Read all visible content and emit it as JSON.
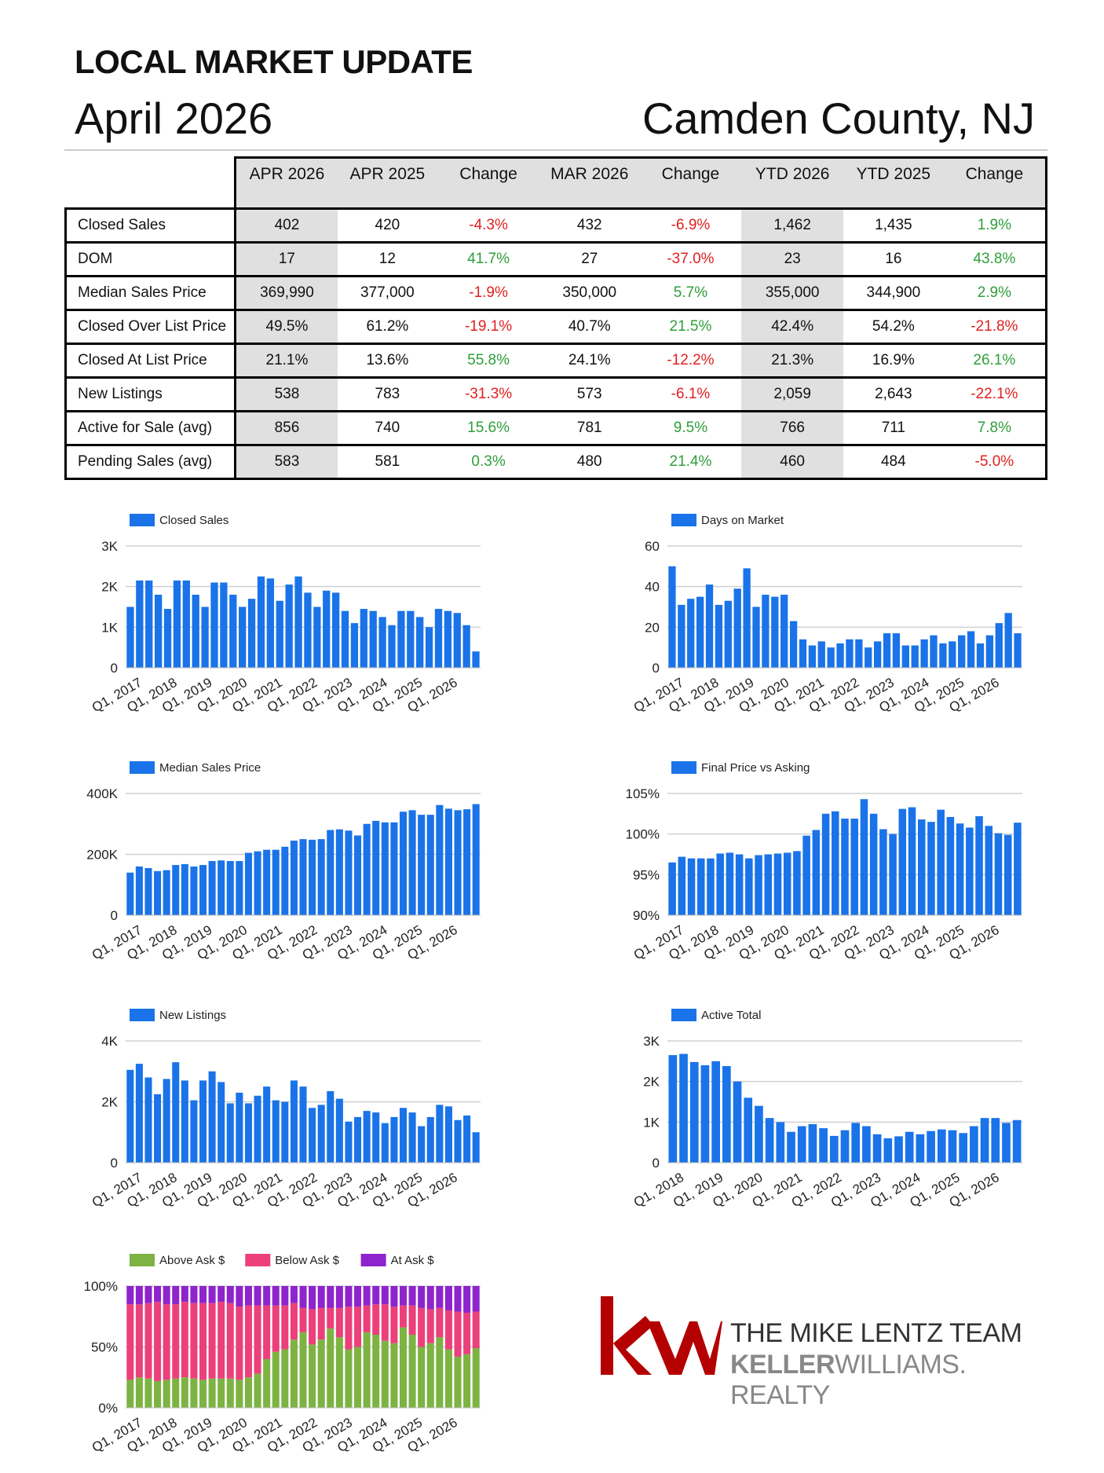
{
  "header": {
    "title": "LOCAL MARKET UPDATE",
    "date": "April 2026",
    "location": "Camden County, NJ"
  },
  "table": {
    "columns": [
      "APR 2026",
      "APR 2025",
      "Change",
      "MAR 2026",
      "Change",
      "YTD 2026",
      "YTD 2025",
      "Change"
    ],
    "rows": [
      {
        "label": "Closed Sales",
        "values": [
          "402",
          "420",
          "-4.3%",
          "432",
          "-6.9%",
          "1,462",
          "1,435",
          "1.9%"
        ]
      },
      {
        "label": "DOM",
        "values": [
          "17",
          "12",
          "41.7%",
          "27",
          "-37.0%",
          "23",
          "16",
          "43.8%"
        ]
      },
      {
        "label": "Median Sales Price",
        "values": [
          "369,990",
          "377,000",
          "-1.9%",
          "350,000",
          "5.7%",
          "355,000",
          "344,900",
          "2.9%"
        ]
      },
      {
        "label": "Closed Over List Price",
        "values": [
          "49.5%",
          "61.2%",
          "-19.1%",
          "40.7%",
          "21.5%",
          "42.4%",
          "54.2%",
          "-21.8%"
        ]
      },
      {
        "label": "Closed At List Price",
        "values": [
          "21.1%",
          "13.6%",
          "55.8%",
          "24.1%",
          "-12.2%",
          "21.3%",
          "16.9%",
          "26.1%"
        ]
      },
      {
        "label": "New Listings",
        "values": [
          "538",
          "783",
          "-31.3%",
          "573",
          "-6.1%",
          "2,059",
          "2,643",
          "-22.1%"
        ]
      },
      {
        "label": "Active for Sale (avg)",
        "values": [
          "856",
          "740",
          "15.6%",
          "781",
          "9.5%",
          "766",
          "711",
          "7.8%"
        ]
      },
      {
        "label": "Pending Sales (avg)",
        "values": [
          "583",
          "581",
          "0.3%",
          "480",
          "21.4%",
          "460",
          "484",
          "-5.0%"
        ]
      }
    ]
  },
  "colors": {
    "bar": "#1a73e8",
    "above": "#7cb342",
    "below": "#ec407a",
    "at": "#8e24cc",
    "negative": "#e02020",
    "positive": "#2e9e3a",
    "kw_red": "#b40000"
  },
  "chart_data": [
    {
      "id": "closed-sales",
      "type": "bar",
      "legend": "Closed Sales",
      "ylim": [
        0,
        3000
      ],
      "yticks": [
        "0",
        "1K",
        "2K",
        "3K"
      ],
      "xticks": [
        "Q1, 2017",
        "Q1, 2018",
        "Q1, 2019",
        "Q1, 2020",
        "Q1, 2021",
        "Q1, 2022",
        "Q1, 2023",
        "Q1, 2024",
        "Q1, 2025",
        "Q1, 2026"
      ],
      "values": [
        1500,
        2150,
        2150,
        1800,
        1450,
        2150,
        2150,
        1800,
        1500,
        2100,
        2100,
        1800,
        1500,
        1700,
        2250,
        2200,
        1650,
        2050,
        2250,
        1850,
        1500,
        1900,
        1850,
        1400,
        1100,
        1450,
        1400,
        1250,
        1050,
        1400,
        1400,
        1250,
        1000,
        1450,
        1400,
        1350,
        1050,
        402
      ]
    },
    {
      "id": "days-on-market",
      "type": "bar",
      "legend": "Days on Market",
      "ylim": [
        0,
        60
      ],
      "yticks": [
        "0",
        "20",
        "40",
        "60"
      ],
      "xticks": [
        "Q1, 2017",
        "Q1, 2018",
        "Q1, 2019",
        "Q1, 2020",
        "Q1, 2021",
        "Q1, 2022",
        "Q1, 2023",
        "Q1, 2024",
        "Q1, 2025",
        "Q1, 2026"
      ],
      "values": [
        50,
        31,
        34,
        35,
        41,
        31,
        33,
        39,
        49,
        30,
        36,
        35,
        36,
        23,
        14,
        11,
        13,
        10,
        12,
        14,
        14,
        10,
        13,
        17,
        17,
        11,
        11,
        14,
        16,
        12,
        13,
        16,
        18,
        12,
        16,
        22,
        27,
        17
      ]
    },
    {
      "id": "median-sales-price",
      "type": "bar",
      "legend": "Median Sales Price",
      "ylim": [
        0,
        400000
      ],
      "yticks": [
        "0",
        "200K",
        "400K"
      ],
      "xticks": [
        "Q1, 2017",
        "Q1, 2018",
        "Q1, 2019",
        "Q1, 2020",
        "Q1, 2021",
        "Q1, 2022",
        "Q1, 2023",
        "Q1, 2024",
        "Q1, 2025",
        "Q1, 2026"
      ],
      "values": [
        140000,
        160000,
        155000,
        145000,
        148000,
        165000,
        168000,
        160000,
        165000,
        178000,
        180000,
        178000,
        178000,
        205000,
        210000,
        215000,
        215000,
        225000,
        245000,
        250000,
        248000,
        250000,
        280000,
        282000,
        278000,
        262000,
        300000,
        310000,
        305000,
        305000,
        340000,
        345000,
        330000,
        330000,
        362000,
        350000,
        345000,
        348000,
        365000
      ]
    },
    {
      "id": "final-price-vs-asking",
      "type": "bar",
      "legend": "Final Price vs Asking",
      "ylim": [
        90,
        105
      ],
      "yticks": [
        "90%",
        "95%",
        "100%",
        "105%"
      ],
      "xticks": [
        "Q1, 2017",
        "Q1, 2018",
        "Q1, 2019",
        "Q1, 2020",
        "Q1, 2021",
        "Q1, 2022",
        "Q1, 2023",
        "Q1, 2024",
        "Q1, 2025",
        "Q1, 2026"
      ],
      "values": [
        96.5,
        97.2,
        97.0,
        97.0,
        97.0,
        97.6,
        97.7,
        97.5,
        97.0,
        97.4,
        97.5,
        97.6,
        97.7,
        97.9,
        99.8,
        100.5,
        102.5,
        102.8,
        101.9,
        101.9,
        104.3,
        102.5,
        100.6,
        100.0,
        103.1,
        103.3,
        101.8,
        101.5,
        103.0,
        102.1,
        101.3,
        100.8,
        102.2,
        101.0,
        100.1,
        99.9,
        101.4
      ]
    },
    {
      "id": "new-listings",
      "type": "bar",
      "legend": "New Listings",
      "ylim": [
        0,
        4000
      ],
      "yticks": [
        "0",
        "2K",
        "4K"
      ],
      "xticks": [
        "Q1, 2017",
        "Q1, 2018",
        "Q1, 2019",
        "Q1, 2020",
        "Q1, 2021",
        "Q1, 2022",
        "Q1, 2023",
        "Q1, 2024",
        "Q1, 2025",
        "Q1, 2026"
      ],
      "values": [
        3050,
        3250,
        2800,
        2250,
        2750,
        3300,
        2700,
        2050,
        2700,
        3000,
        2650,
        1950,
        2300,
        1950,
        2200,
        2500,
        2050,
        2000,
        2700,
        2500,
        1800,
        1900,
        2350,
        2100,
        1350,
        1500,
        1700,
        1650,
        1300,
        1500,
        1800,
        1650,
        1200,
        1500,
        1900,
        1850,
        1400,
        1550,
        1000
      ]
    },
    {
      "id": "active-total",
      "type": "bar",
      "legend": "Active Total",
      "ylim": [
        0,
        3000
      ],
      "yticks": [
        "0",
        "1K",
        "2K",
        "3K"
      ],
      "xticks": [
        "Q1, 2018",
        "Q1, 2019",
        "Q1, 2020",
        "Q1, 2021",
        "Q1, 2022",
        "Q1, 2023",
        "Q1, 2024",
        "Q1, 2025",
        "Q1, 2026"
      ],
      "values": [
        2650,
        2680,
        2480,
        2400,
        2500,
        2380,
        2000,
        1600,
        1400,
        1100,
        1000,
        760,
        900,
        950,
        850,
        660,
        800,
        980,
        900,
        700,
        600,
        650,
        760,
        700,
        780,
        820,
        800,
        730,
        900,
        1100,
        1100,
        980,
        1050
      ]
    },
    {
      "id": "sale-price-vs-ask",
      "type": "stacked-bar",
      "ylim": [
        0,
        100
      ],
      "yticks": [
        "0%",
        "50%",
        "100%"
      ],
      "xticks": [
        "Q1, 2017",
        "Q1, 2018",
        "Q1, 2019",
        "Q1, 2020",
        "Q1, 2021",
        "Q1, 2022",
        "Q1, 2023",
        "Q1, 2024",
        "Q1, 2025",
        "Q1, 2026"
      ],
      "series": [
        {
          "name": "Above Ask $",
          "values": [
            23,
            25,
            24,
            22,
            23,
            24,
            25,
            24,
            23,
            24,
            24,
            24,
            23,
            25,
            28,
            40,
            46,
            48,
            56,
            62,
            52,
            56,
            65,
            58,
            48,
            50,
            62,
            60,
            55,
            53,
            66,
            60,
            50,
            53,
            58,
            48,
            42,
            44,
            49
          ]
        },
        {
          "name": "Below Ask $",
          "values": [
            62,
            60,
            62,
            65,
            62,
            61,
            62,
            62,
            63,
            62,
            63,
            62,
            60,
            59,
            56,
            44,
            38,
            36,
            30,
            20,
            29,
            26,
            17,
            24,
            35,
            33,
            22,
            25,
            30,
            30,
            18,
            24,
            32,
            28,
            24,
            32,
            37,
            34,
            30
          ]
        },
        {
          "name": "At Ask $",
          "values": [
            15,
            15,
            14,
            13,
            15,
            15,
            13,
            14,
            14,
            14,
            13,
            14,
            17,
            16,
            16,
            16,
            16,
            16,
            14,
            18,
            19,
            18,
            18,
            18,
            17,
            17,
            16,
            15,
            15,
            17,
            16,
            16,
            18,
            19,
            18,
            20,
            21,
            22,
            21
          ]
        }
      ]
    }
  ],
  "logo": {
    "monogram": "kw",
    "team": "THE MIKE LENTZ TEAM",
    "brand_bold": "KELLER",
    "brand_light": "WILLIAMS.",
    "brand_tail": " REALTY"
  }
}
